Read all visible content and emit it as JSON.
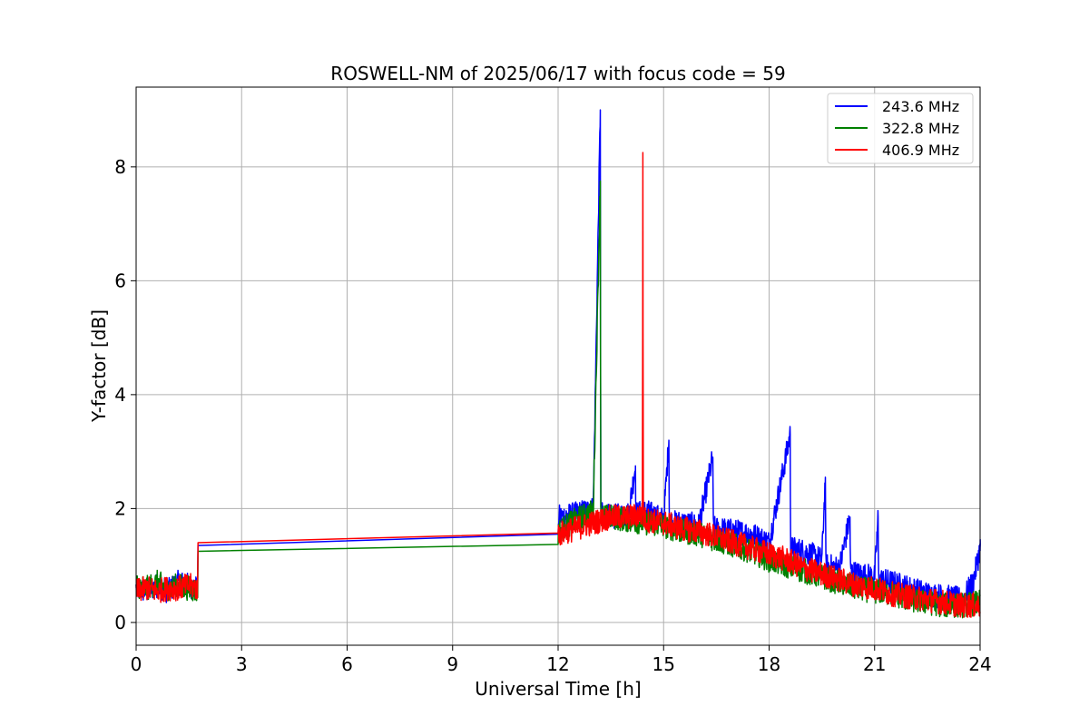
{
  "chart_data": {
    "type": "line",
    "title": "ROSWELL-NM of 2025/06/17 with focus code = 59",
    "xlabel": "Universal Time [h]",
    "ylabel": "Y-factor [dB]",
    "xlim": [
      0,
      24
    ],
    "ylim": [
      -0.4,
      9.4
    ],
    "xticks": [
      0,
      3,
      6,
      9,
      12,
      15,
      18,
      21,
      24
    ],
    "yticks": [
      0,
      2,
      4,
      6,
      8
    ],
    "xtick_labels": [
      "0",
      "3",
      "6",
      "9",
      "12",
      "15",
      "18",
      "21",
      "24"
    ],
    "ytick_labels": [
      "0",
      "2",
      "4",
      "6",
      "8"
    ],
    "grid": true,
    "legend_position": "top-right",
    "series": [
      {
        "name": "243.6 MHz",
        "color": "#0000ff",
        "x": [
          0,
          0.3,
          0.6,
          0.9,
          1.2,
          1.5,
          1.75,
          1.76,
          12.0,
          12.01,
          12.5,
          13.0,
          13.2,
          13.21,
          13.22,
          13.5,
          14.0,
          14.2,
          14.21,
          14.5,
          15.0,
          15.15,
          15.16,
          15.5,
          16.0,
          16.4,
          16.41,
          17.0,
          17.5,
          18.0,
          18.6,
          18.61,
          19.0,
          19.5,
          19.6,
          19.61,
          20.0,
          20.3,
          20.31,
          20.5,
          21.0,
          21.1,
          21.11,
          21.5,
          22.0,
          22.5,
          23.0,
          23.5,
          23.8,
          24.0
        ],
        "y": [
          0.6,
          0.55,
          0.65,
          0.55,
          0.7,
          0.65,
          0.6,
          1.35,
          1.55,
          1.85,
          1.9,
          2.0,
          9.0,
          2.0,
          1.9,
          1.85,
          1.9,
          2.75,
          1.9,
          1.95,
          1.8,
          3.2,
          1.75,
          1.75,
          1.7,
          2.9,
          1.65,
          1.6,
          1.55,
          1.4,
          3.3,
          1.3,
          1.25,
          1.1,
          2.55,
          1.0,
          0.95,
          1.85,
          0.9,
          0.85,
          0.8,
          1.85,
          0.75,
          0.7,
          0.6,
          0.5,
          0.45,
          0.4,
          0.7,
          1.3
        ]
      },
      {
        "name": "322.8 MHz",
        "color": "#008000",
        "x": [
          0,
          0.3,
          0.6,
          0.9,
          1.2,
          1.5,
          1.75,
          1.76,
          12.0,
          12.01,
          12.5,
          13.0,
          13.2,
          13.21,
          13.22,
          13.5,
          14.0,
          14.5,
          15.0,
          15.5,
          16.0,
          16.5,
          17.0,
          17.5,
          18.0,
          18.5,
          19.0,
          19.5,
          20.0,
          20.5,
          21.0,
          21.5,
          22.0,
          22.5,
          23.0,
          23.5,
          24.0
        ],
        "y": [
          0.65,
          0.6,
          0.7,
          0.6,
          0.65,
          0.6,
          0.55,
          1.25,
          1.37,
          1.6,
          1.8,
          1.95,
          7.75,
          1.95,
          1.85,
          1.85,
          1.8,
          1.75,
          1.7,
          1.6,
          1.55,
          1.45,
          1.35,
          1.25,
          1.1,
          1.0,
          0.9,
          0.8,
          0.7,
          0.6,
          0.55,
          0.5,
          0.4,
          0.35,
          0.3,
          0.3,
          0.35
        ]
      },
      {
        "name": "406.9 MHz",
        "color": "#ff0000",
        "x": [
          0,
          0.3,
          0.6,
          0.9,
          1.2,
          1.5,
          1.75,
          1.76,
          12.0,
          12.01,
          12.5,
          13.0,
          13.5,
          14.0,
          14.4,
          14.41,
          14.42,
          14.5,
          15.0,
          15.5,
          16.0,
          16.5,
          17.0,
          17.5,
          18.0,
          18.5,
          19.0,
          19.5,
          20.0,
          20.5,
          21.0,
          21.5,
          22.0,
          22.5,
          23.0,
          23.5,
          24.0
        ],
        "y": [
          0.55,
          0.6,
          0.55,
          0.6,
          0.6,
          0.65,
          0.6,
          1.4,
          1.57,
          1.55,
          1.65,
          1.75,
          1.85,
          1.85,
          1.9,
          8.25,
          1.85,
          1.8,
          1.75,
          1.65,
          1.6,
          1.5,
          1.4,
          1.3,
          1.2,
          1.1,
          0.95,
          0.85,
          0.75,
          0.65,
          0.6,
          0.5,
          0.45,
          0.4,
          0.35,
          0.3,
          0.3
        ]
      }
    ]
  }
}
